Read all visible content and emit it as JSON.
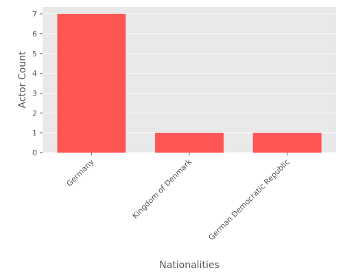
{
  "chart_data": {
    "type": "bar",
    "categories": [
      "Germany",
      "Kingdom of Denmark",
      "German Democratic Republic"
    ],
    "values": [
      7,
      1,
      1
    ],
    "xlabel": "Nationalities",
    "ylabel": "Actor Count",
    "ylim": [
      0,
      7.35
    ],
    "yticks": [
      0,
      1,
      2,
      3,
      4,
      5,
      6,
      7
    ],
    "grid": true,
    "bar_color": "#ff5555",
    "plot_background": "#e9e9e9",
    "grid_color": "#ffffff"
  }
}
